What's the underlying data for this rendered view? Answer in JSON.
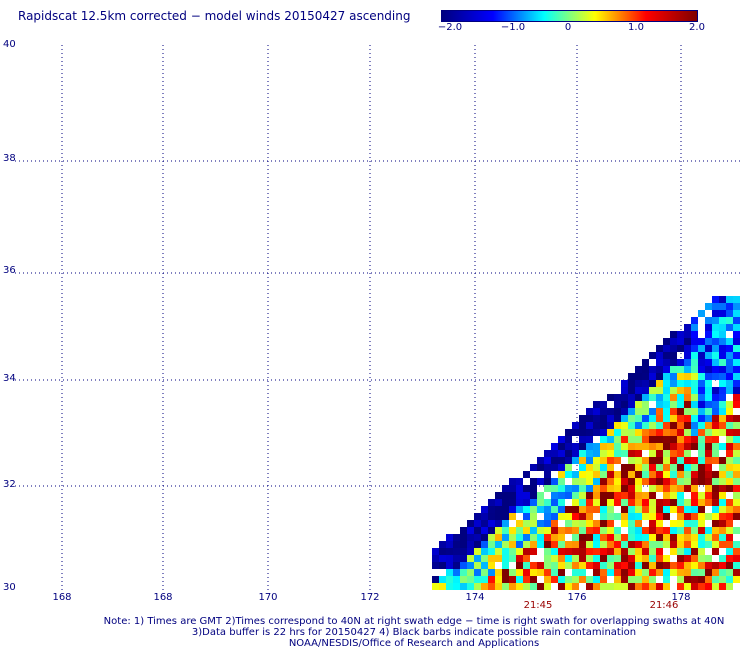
{
  "chart_data": {
    "type": "heatmap",
    "title": "Rapidscat 12.5km corrected − model winds 20150427 ascending",
    "colorbar": {
      "ticks": [
        "−2.0",
        "−1.0",
        "0",
        "1.0",
        "2.0"
      ],
      "range": [
        -2.0,
        2.0
      ],
      "colors": [
        "#00007f",
        "#0000ff",
        "#00ffff",
        "#ffff00",
        "#ff0000",
        "#7f0000"
      ]
    },
    "y_ticks": [
      "40",
      "38",
      "36",
      "34",
      "32",
      "30"
    ],
    "x_ticks": [
      "168",
      "168",
      "170",
      "172",
      "174",
      "176",
      "178"
    ],
    "xlim": [
      166.5,
      179.4
    ],
    "ylim": [
      30,
      40
    ],
    "grid": true,
    "swath_times": [
      {
        "label": "21:45",
        "lon": 175.3
      },
      {
        "label": "21:46",
        "lon": 177.7
      }
    ],
    "swath_region": {
      "description_values_lonlat_edge": [
        [
          173.2,
          30.0
        ],
        [
          179.4,
          35.8
        ]
      ]
    }
  },
  "notes": [
    "Note: 1) Times are GMT 2)Times correspond to 40N at right swath edge − time is right swath for overlapping swaths at 40N",
    "3)Data buffer is 22 hrs for 20150427 4) Black barbs indicate possible rain contamination",
    "NOAA/NESDIS/Office of Research and Applications"
  ]
}
